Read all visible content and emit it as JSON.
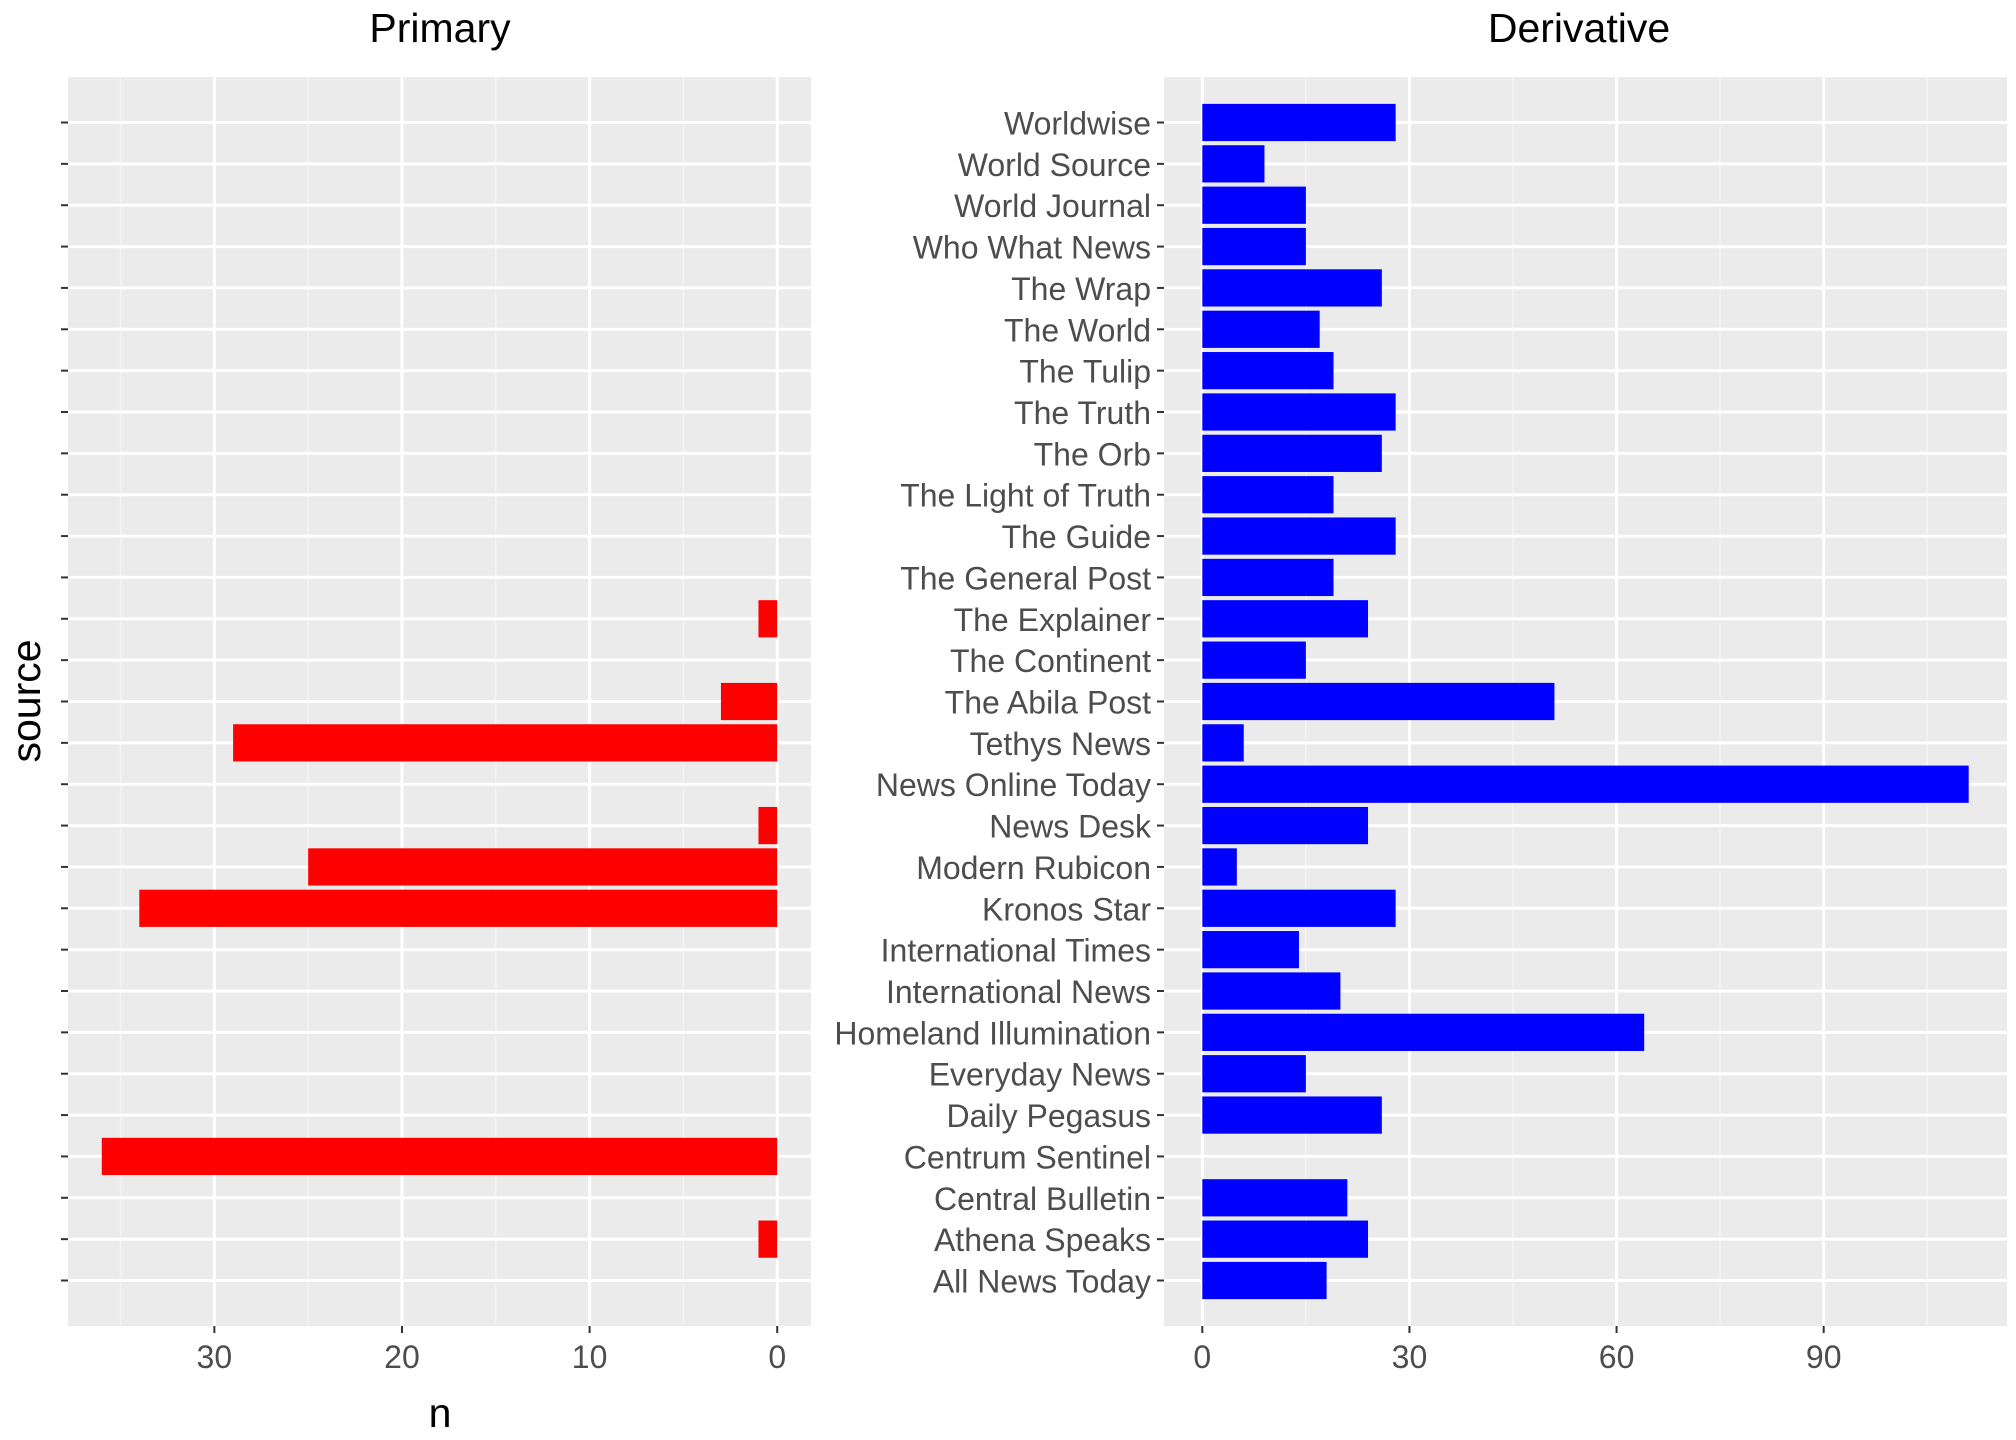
{
  "chart_data": [
    {
      "type": "bar",
      "orientation": "horizontal",
      "x_reversed": true,
      "title": "Primary",
      "xlabel": "n",
      "ylabel": "source",
      "xlim": [
        37.8,
        -1.8
      ],
      "x_ticks": [
        30,
        20,
        10,
        0
      ],
      "x_tick_labels": [
        "30",
        "20",
        "10",
        "0"
      ],
      "bar_color": "#ff0000",
      "categories": [
        "Worldwise",
        "World Source",
        "World Journal",
        "Who What News",
        "The Wrap",
        "The World",
        "The Tulip",
        "The Truth",
        "The Orb",
        "The Light of Truth",
        "The Guide",
        "The General Post",
        "The Explainer",
        "The Continent",
        "The Abila Post",
        "Tethys News",
        "News Online Today",
        "News Desk",
        "Modern Rubicon",
        "Kronos Star",
        "International Times",
        "International News",
        "Homeland Illumination",
        "Everyday News",
        "Daily Pegasus",
        "Centrum Sentinel",
        "Central Bulletin",
        "Athena Speaks",
        "All News Today"
      ],
      "values": [
        0,
        0,
        0,
        0,
        0,
        0,
        0,
        0,
        0,
        0,
        0,
        0,
        1,
        0,
        3,
        29,
        0,
        1,
        25,
        34,
        0,
        0,
        0,
        0,
        0,
        36,
        0,
        1,
        0
      ]
    },
    {
      "type": "bar",
      "orientation": "horizontal",
      "title": "Derivative",
      "xlabel": "",
      "ylabel": "",
      "xlim": [
        -5.55,
        116.55
      ],
      "x_ticks": [
        0,
        30,
        60,
        90
      ],
      "x_tick_labels": [
        "0",
        "30",
        "60",
        "90"
      ],
      "bar_color": "#0000ff",
      "categories": [
        "Worldwise",
        "World Source",
        "World Journal",
        "Who What News",
        "The Wrap",
        "The World",
        "The Tulip",
        "The Truth",
        "The Orb",
        "The Light of Truth",
        "The Guide",
        "The General Post",
        "The Explainer",
        "The Continent",
        "The Abila Post",
        "Tethys News",
        "News Online Today",
        "News Desk",
        "Modern Rubicon",
        "Kronos Star",
        "International Times",
        "International News",
        "Homeland Illumination",
        "Everyday News",
        "Daily Pegasus",
        "Centrum Sentinel",
        "Central Bulletin",
        "Athena Speaks",
        "All News Today"
      ],
      "values": [
        28,
        9,
        15,
        15,
        26,
        17,
        19,
        28,
        26,
        19,
        28,
        19,
        24,
        15,
        51,
        6,
        111,
        24,
        5,
        28,
        14,
        20,
        64,
        15,
        26,
        0,
        21,
        24,
        18
      ]
    }
  ],
  "style": {
    "panel_bg": "#ebebeb",
    "grid_major": "#ffffff",
    "grid_minor": "#f4f4f4",
    "tick_color": "#333333",
    "axis_text_color": "#4d4d4d",
    "title_color": "#000000"
  }
}
